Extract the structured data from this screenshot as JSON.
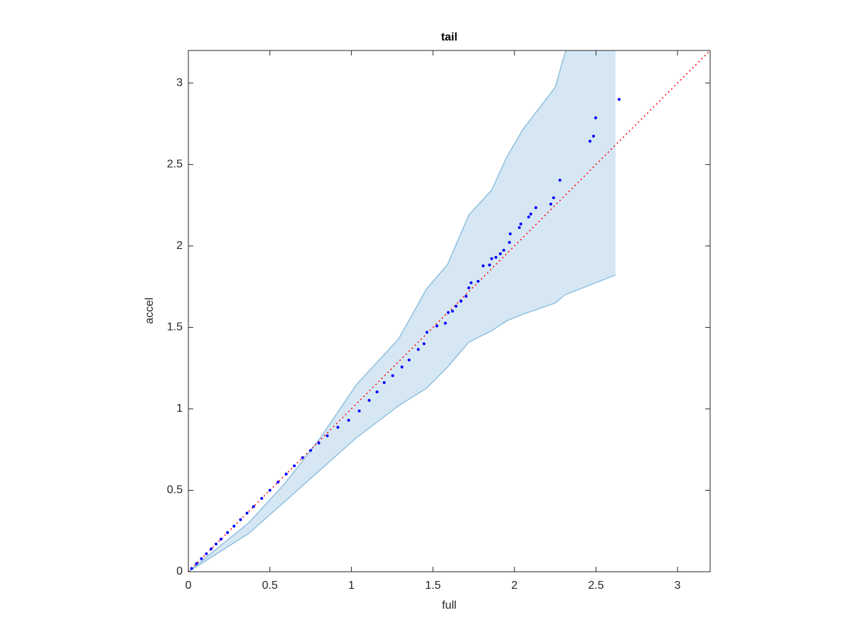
{
  "chart_data": {
    "type": "scatter",
    "title": "tail",
    "xlabel": "full",
    "ylabel": "accel",
    "xlim": [
      0,
      3.2
    ],
    "ylim": [
      0,
      3.2
    ],
    "xticks": [
      0,
      0.5,
      1,
      1.5,
      2,
      2.5,
      3
    ],
    "yticks": [
      0,
      0.5,
      1,
      1.5,
      2,
      2.5,
      3
    ],
    "band": {
      "color": "#d6e7f3",
      "edge_color": "#8fc0e0",
      "x": [
        0,
        0.37,
        0.59,
        0.81,
        1.03,
        1.29,
        1.46,
        1.59,
        1.72,
        1.86,
        1.95,
        2.05,
        2.25,
        2.31,
        2.62
      ],
      "upper": [
        0,
        0.3,
        0.54,
        0.822,
        1.148,
        1.43,
        1.735,
        1.887,
        2.19,
        2.343,
        2.54,
        2.713,
        2.974,
        3.187,
        3.6
      ],
      "lower": [
        0,
        0.235,
        0.43,
        0.626,
        0.822,
        1.02,
        1.126,
        1.257,
        1.409,
        1.48,
        1.539,
        1.58,
        1.65,
        1.7,
        1.822
      ]
    },
    "reference": {
      "color": "#ff0000",
      "x": [
        0,
        3.2
      ],
      "values": [
        0,
        3.2
      ]
    },
    "series": [
      {
        "color": "#0000ff",
        "x": [
          0.02,
          0.05,
          0.08,
          0.11,
          0.14,
          0.17,
          0.2,
          0.24,
          0.28,
          0.32,
          0.36,
          0.4,
          0.45,
          0.5,
          0.55,
          0.6,
          0.65,
          0.7,
          0.75,
          0.8,
          0.852,
          0.917,
          0.983,
          1.048,
          1.109,
          1.157,
          1.201,
          1.253,
          1.31,
          1.354,
          1.41,
          1.445,
          1.463,
          1.524,
          1.576,
          1.594,
          1.62,
          1.642,
          1.672,
          1.703,
          1.72,
          1.734,
          1.777,
          1.808,
          1.847,
          1.86,
          1.886,
          1.913,
          1.934,
          1.969,
          1.974,
          2.03,
          2.039,
          2.087,
          2.1,
          2.131,
          2.223,
          2.24,
          2.279,
          2.463,
          2.485,
          2.498,
          2.642
        ],
        "values": [
          0.02,
          0.05,
          0.08,
          0.11,
          0.14,
          0.17,
          0.2,
          0.24,
          0.28,
          0.32,
          0.36,
          0.4,
          0.45,
          0.5,
          0.55,
          0.6,
          0.65,
          0.7,
          0.745,
          0.79,
          0.835,
          0.887,
          0.93,
          0.987,
          1.052,
          1.104,
          1.161,
          1.204,
          1.257,
          1.3,
          1.365,
          1.4,
          1.47,
          1.509,
          1.526,
          1.591,
          1.6,
          1.63,
          1.661,
          1.691,
          1.743,
          1.774,
          1.783,
          1.878,
          1.883,
          1.922,
          1.93,
          1.952,
          1.974,
          2.022,
          2.074,
          2.113,
          2.135,
          2.178,
          2.196,
          2.235,
          2.257,
          2.296,
          2.404,
          2.643,
          2.674,
          2.787,
          2.9
        ]
      }
    ]
  }
}
